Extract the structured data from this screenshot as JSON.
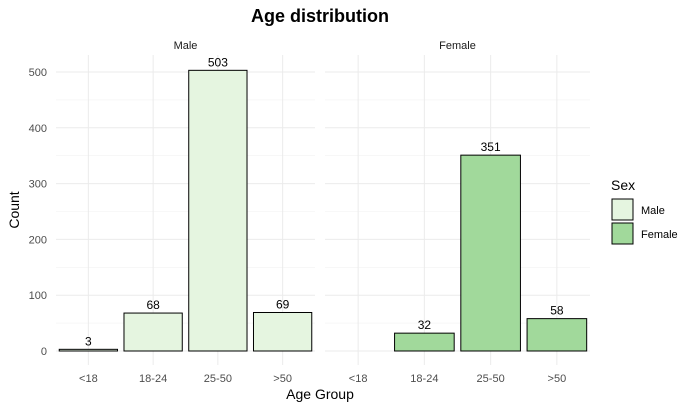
{
  "chart_data": {
    "type": "bar",
    "title": "Age distribution",
    "xlabel": "Age Group",
    "ylabel": "Count",
    "categories": [
      "<18",
      "18-24",
      "25-50",
      ">50"
    ],
    "ylim": [
      0,
      520
    ],
    "yticks": [
      0,
      100,
      200,
      300,
      400,
      500
    ],
    "grid": true,
    "facets": [
      {
        "name": "Male",
        "values": [
          3,
          68,
          503,
          69
        ],
        "color": "#e5f5e0"
      },
      {
        "name": "Female",
        "values": [
          null,
          32,
          351,
          58
        ],
        "color": "#a1d99b"
      }
    ],
    "legend": {
      "title": "Sex",
      "placement": "right",
      "entries": [
        {
          "name": "Male",
          "color": "#e5f5e0"
        },
        {
          "name": "Female",
          "color": "#a1d99b"
        }
      ]
    }
  }
}
